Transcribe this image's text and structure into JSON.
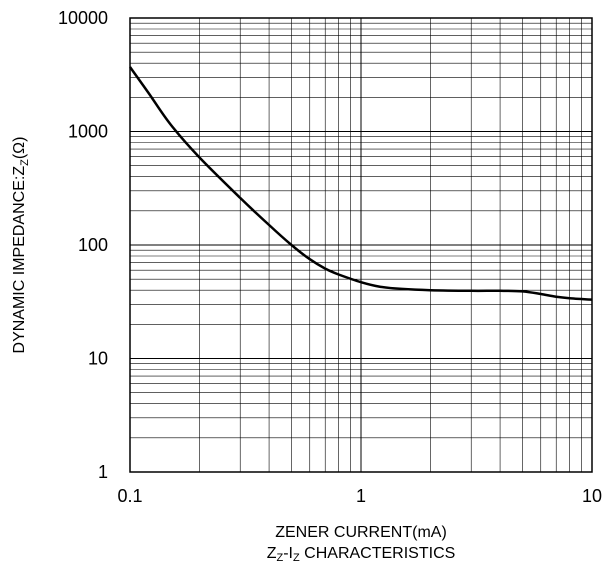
{
  "chart_data": {
    "type": "line",
    "x_scale": "log",
    "y_scale": "log",
    "xlabel": "ZENER CURRENT(mA)",
    "ylabel": "DYNAMIC IMPEDANCE:Z",
    "ylabel_sub": "Z",
    "ylabel_unit": "(Ω)",
    "caption": {
      "z": "Z",
      "z_sub": "Z",
      "dash": "-",
      "i": "I",
      "i_sub": "Z",
      "rest": " CHARACTERISTICS"
    },
    "xlim": [
      0.1,
      10
    ],
    "ylim": [
      1,
      10000
    ],
    "x_ticks": [
      "0.1",
      "1",
      "10"
    ],
    "y_ticks": [
      "1",
      "10",
      "100",
      "1000",
      "10000"
    ],
    "grid": true,
    "series": [
      {
        "x": [
          0.1,
          0.12,
          0.15,
          0.2,
          0.3,
          0.4,
          0.5,
          0.6,
          0.7,
          0.8,
          1.0,
          1.2,
          1.5,
          2,
          3,
          4,
          5,
          6,
          7,
          8,
          10
        ],
        "values": [
          3700,
          2200,
          1150,
          590,
          260,
          150,
          100,
          75,
          62,
          55,
          47,
          43,
          41,
          40,
          39.5,
          39.5,
          39,
          37,
          35,
          34,
          33
        ],
        "color": "#000000"
      }
    ]
  }
}
